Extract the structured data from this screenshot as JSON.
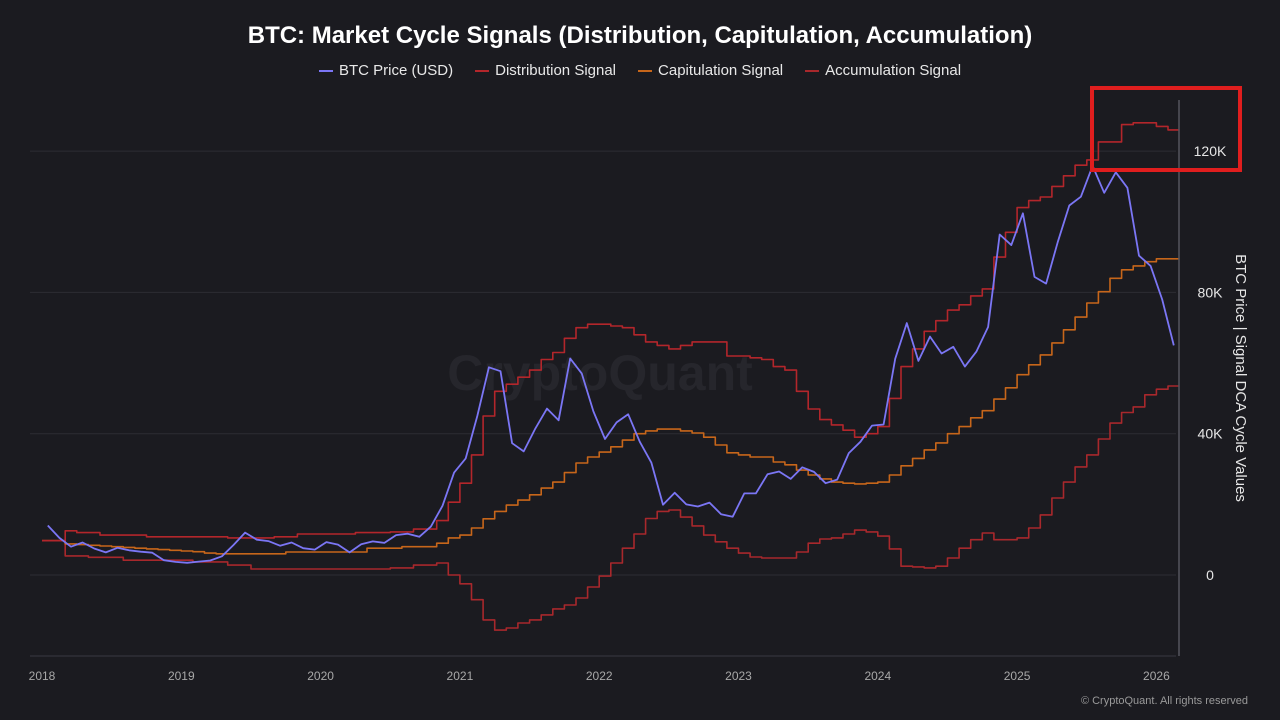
{
  "chart_data": {
    "type": "line",
    "title": "BTC: Market Cycle Signals (Distribution, Capitulation, Accumulation)",
    "ylabel": "BTC Price | Signal DCA Cycle Values",
    "xlabel": "",
    "ylim": [
      -23000,
      134000
    ],
    "yticks": [
      0,
      40000,
      80000,
      120000
    ],
    "ytick_labels": [
      "0",
      "40K",
      "80K",
      "120K"
    ],
    "xtick_labels": [
      "2018",
      "2019",
      "2020",
      "2021",
      "2022",
      "2023",
      "2024",
      "2025",
      "2026"
    ],
    "grid": true,
    "legend_position": "top",
    "watermark": "CryptoQuant",
    "x": [
      "2018-01",
      "2018-02",
      "2018-03",
      "2018-04",
      "2018-05",
      "2018-06",
      "2018-07",
      "2018-08",
      "2018-09",
      "2018-10",
      "2018-11",
      "2018-12",
      "2019-01",
      "2019-02",
      "2019-03",
      "2019-04",
      "2019-05",
      "2019-06",
      "2019-07",
      "2019-08",
      "2019-09",
      "2019-10",
      "2019-11",
      "2019-12",
      "2020-01",
      "2020-02",
      "2020-03",
      "2020-04",
      "2020-05",
      "2020-06",
      "2020-07",
      "2020-08",
      "2020-09",
      "2020-10",
      "2020-11",
      "2020-12",
      "2021-01",
      "2021-02",
      "2021-03",
      "2021-04",
      "2021-05",
      "2021-06",
      "2021-07",
      "2021-08",
      "2021-09",
      "2021-10",
      "2021-11",
      "2021-12",
      "2022-01",
      "2022-02",
      "2022-03",
      "2022-04",
      "2022-05",
      "2022-06",
      "2022-07",
      "2022-08",
      "2022-09",
      "2022-10",
      "2022-11",
      "2022-12",
      "2023-01",
      "2023-02",
      "2023-03",
      "2023-04",
      "2023-05",
      "2023-06",
      "2023-07",
      "2023-08",
      "2023-09",
      "2023-10",
      "2023-11",
      "2023-12",
      "2024-01",
      "2024-02",
      "2024-03",
      "2024-04",
      "2024-05",
      "2024-06",
      "2024-07",
      "2024-08",
      "2024-09",
      "2024-10",
      "2024-11",
      "2024-12",
      "2025-01",
      "2025-02",
      "2025-03",
      "2025-04",
      "2025-05",
      "2025-06",
      "2025-07",
      "2025-08",
      "2025-09",
      "2025-10",
      "2025-11",
      "2025-12",
      "2026-01",
      "2026-02"
    ],
    "series": [
      {
        "name": "BTC Price (USD)",
        "color": "#7b76f5",
        "style": "line",
        "values": [
          14000,
          10500,
          8000,
          9200,
          7500,
          6400,
          7700,
          7000,
          6600,
          6300,
          4200,
          3700,
          3450,
          3800,
          4100,
          5300,
          8500,
          12000,
          10000,
          9600,
          8300,
          9200,
          7600,
          7200,
          9300,
          8600,
          6400,
          8700,
          9500,
          9100,
          11300,
          11700,
          10800,
          13700,
          19600,
          29000,
          33000,
          45000,
          58800,
          57700,
          37300,
          35000,
          41500,
          47100,
          43800,
          61300,
          57000,
          46300,
          38500,
          43200,
          45500,
          37700,
          31800,
          19900,
          23300,
          20000,
          19400,
          20500,
          17200,
          16500,
          23100,
          23100,
          28500,
          29300,
          27200,
          30500,
          29200,
          26000,
          27000,
          34500,
          37700,
          42300,
          42600,
          61200,
          71300,
          60600,
          67500,
          62700,
          64600,
          59000,
          63300,
          70200,
          96400,
          93400,
          102400,
          84400,
          82500,
          94200,
          104600,
          107100,
          115800,
          108200,
          114000,
          109600,
          90400,
          87500,
          78000,
          65000
        ]
      },
      {
        "name": "Distribution Signal",
        "color": "#b3262b",
        "style": "step",
        "values": [
          9700,
          9700,
          12500,
          12000,
          12000,
          11300,
          11300,
          11300,
          11300,
          10800,
          10800,
          10800,
          10800,
          10800,
          10800,
          10800,
          10500,
          10500,
          10500,
          10500,
          10800,
          10800,
          11600,
          11600,
          11600,
          11600,
          11600,
          12000,
          12000,
          12000,
          12200,
          12200,
          13000,
          13000,
          15400,
          20600,
          26000,
          34000,
          45000,
          52000,
          54000,
          56000,
          58000,
          61000,
          63000,
          67000,
          70000,
          71000,
          71000,
          70500,
          70000,
          68000,
          66000,
          65000,
          64000,
          65000,
          66000,
          66000,
          66000,
          62000,
          62000,
          61500,
          61000,
          59000,
          58000,
          52000,
          47000,
          44000,
          42500,
          41000,
          39000,
          40000,
          42000,
          50000,
          59000,
          64000,
          69000,
          72000,
          75000,
          76500,
          79000,
          81000,
          90000,
          97000,
          104000,
          106000,
          107000,
          110000,
          113000,
          116000,
          117500,
          122600,
          122600,
          127500,
          128000,
          128000,
          127000,
          126000
        ]
      },
      {
        "name": "Capitulation Signal",
        "color": "#c7661a",
        "style": "step",
        "values": [
          9700,
          9700,
          8800,
          8600,
          8400,
          8200,
          8000,
          7800,
          7600,
          7400,
          7200,
          7000,
          6800,
          6600,
          6200,
          6000,
          6000,
          6000,
          6000,
          6000,
          6000,
          6500,
          6500,
          6500,
          6500,
          6500,
          6500,
          6500,
          7600,
          7600,
          7600,
          8000,
          8000,
          8000,
          9000,
          10500,
          11300,
          13300,
          15900,
          18000,
          19800,
          21200,
          22700,
          24600,
          26300,
          29000,
          31700,
          33400,
          34800,
          36300,
          38200,
          40000,
          40800,
          41300,
          41300,
          40800,
          40200,
          39000,
          36800,
          34600,
          34000,
          33400,
          33400,
          32000,
          31200,
          29700,
          28300,
          27200,
          26300,
          26000,
          25800,
          26000,
          26300,
          28300,
          30900,
          33000,
          35400,
          37400,
          40000,
          42000,
          44500,
          46500,
          49800,
          53000,
          56700,
          59500,
          62300,
          65700,
          69400,
          73000,
          77000,
          80200,
          84000,
          86400,
          87500,
          88700,
          89500,
          89500
        ]
      },
      {
        "name": "Accumulation Signal",
        "color": "#a8282c",
        "style": "step",
        "values": [
          9700,
          9700,
          5400,
          5400,
          5000,
          5000,
          5000,
          4200,
          4200,
          4200,
          4200,
          4200,
          4200,
          3700,
          3700,
          3700,
          2800,
          2800,
          1700,
          1700,
          1700,
          1700,
          1700,
          1700,
          1700,
          1700,
          1700,
          1700,
          1700,
          1700,
          2000,
          2000,
          2800,
          2800,
          3400,
          0,
          -2500,
          -7000,
          -12700,
          -15600,
          -15000,
          -13600,
          -12700,
          -11300,
          -9600,
          -8500,
          -6500,
          -3400,
          -300,
          3400,
          7600,
          11600,
          16000,
          18000,
          18400,
          16400,
          13900,
          11300,
          9400,
          7600,
          6200,
          5100,
          4800,
          4800,
          4800,
          6500,
          9000,
          10200,
          10500,
          11600,
          12700,
          12200,
          11000,
          7400,
          2500,
          2300,
          2000,
          2500,
          4800,
          7600,
          10000,
          11900,
          10000,
          10000,
          10500,
          13300,
          17000,
          21800,
          26300,
          30600,
          34000,
          38500,
          43000,
          46000,
          47600,
          51000,
          52600,
          53500
        ]
      }
    ]
  },
  "annotation": {
    "type": "highlight-box",
    "color": "#e01e1e"
  },
  "footer": "© CryptoQuant. All rights reserved"
}
